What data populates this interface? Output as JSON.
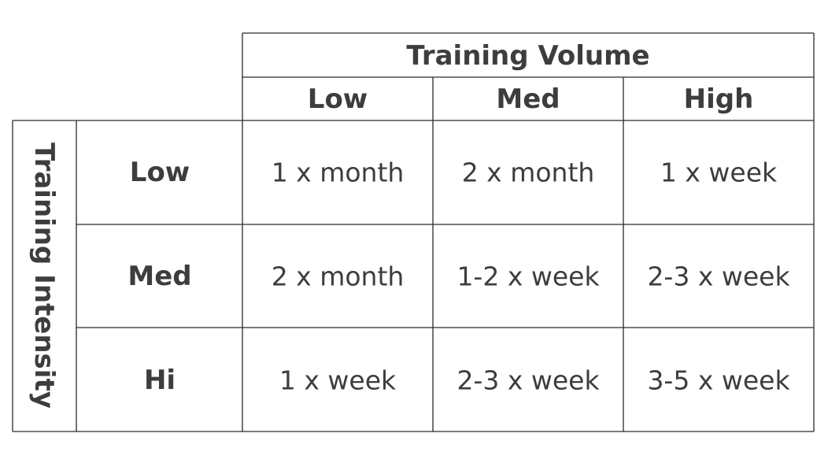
{
  "table": {
    "column_group": "Training Volume",
    "row_group": "Training Intensity",
    "columns": [
      "Low",
      "Med",
      "High"
    ],
    "rows": [
      {
        "label": "Low",
        "cells": [
          "1 x month",
          "2 x month",
          "1 x week"
        ]
      },
      {
        "label": "Med",
        "cells": [
          "2 x month",
          "1-2 x week",
          "2-3 x week"
        ]
      },
      {
        "label": "Hi",
        "cells": [
          "1 x week",
          "2-3 x week",
          "3-5 x week"
        ]
      }
    ]
  }
}
